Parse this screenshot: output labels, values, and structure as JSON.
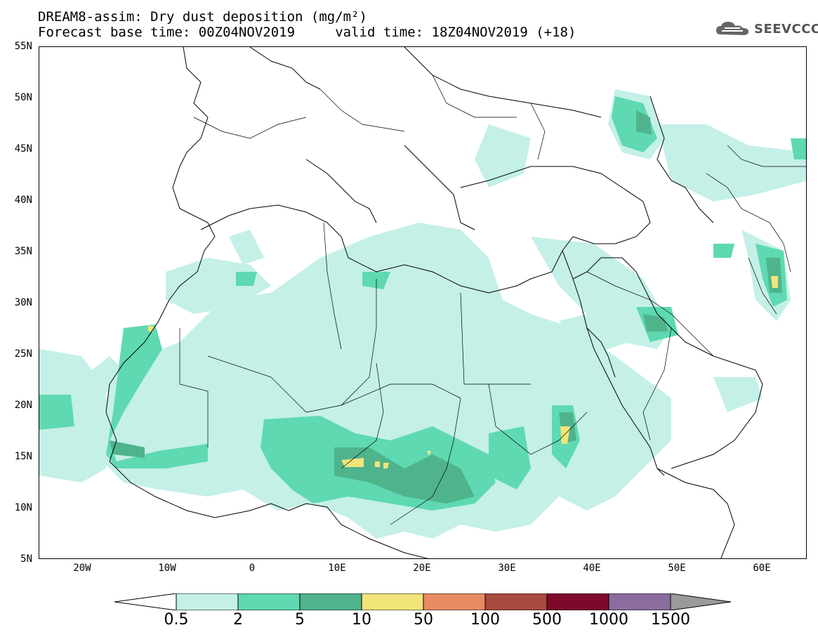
{
  "title": {
    "line1": "DREAM8-assim: Dry dust deposition (mg/m²)",
    "line2": "Forecast base time: 00Z04NOV2019     valid time: 18Z04NOV2019 (+18)"
  },
  "logo": {
    "text": "SEEVCCC",
    "icon": "cloud-icon"
  },
  "map": {
    "lat_labels": [
      "55N",
      "50N",
      "45N",
      "40N",
      "35N",
      "30N",
      "25N",
      "20N",
      "15N",
      "10N",
      "5N"
    ],
    "lon_labels": [
      "20W",
      "10W",
      "0",
      "10E",
      "20E",
      "30E",
      "40E",
      "50E",
      "60E"
    ],
    "extent": {
      "lon_min": -25,
      "lon_max": 65,
      "lat_min": 5,
      "lat_max": 55
    }
  },
  "colorbar": {
    "labels": [
      "0.5",
      "2",
      "5",
      "10",
      "50",
      "100",
      "500",
      "1000",
      "1500"
    ],
    "colors": [
      "#c4f0e8",
      "#5ed9b2",
      "#4fb48c",
      "#f1e57a",
      "#e98b63",
      "#a84a3d",
      "#7d0a2b",
      "#8a6c9e",
      "#9a9a9a"
    ]
  },
  "colors": {
    "level1": "#c4f0e8",
    "level2": "#5ed9b2",
    "level3": "#4fb48c",
    "level4": "#f1e57a"
  }
}
